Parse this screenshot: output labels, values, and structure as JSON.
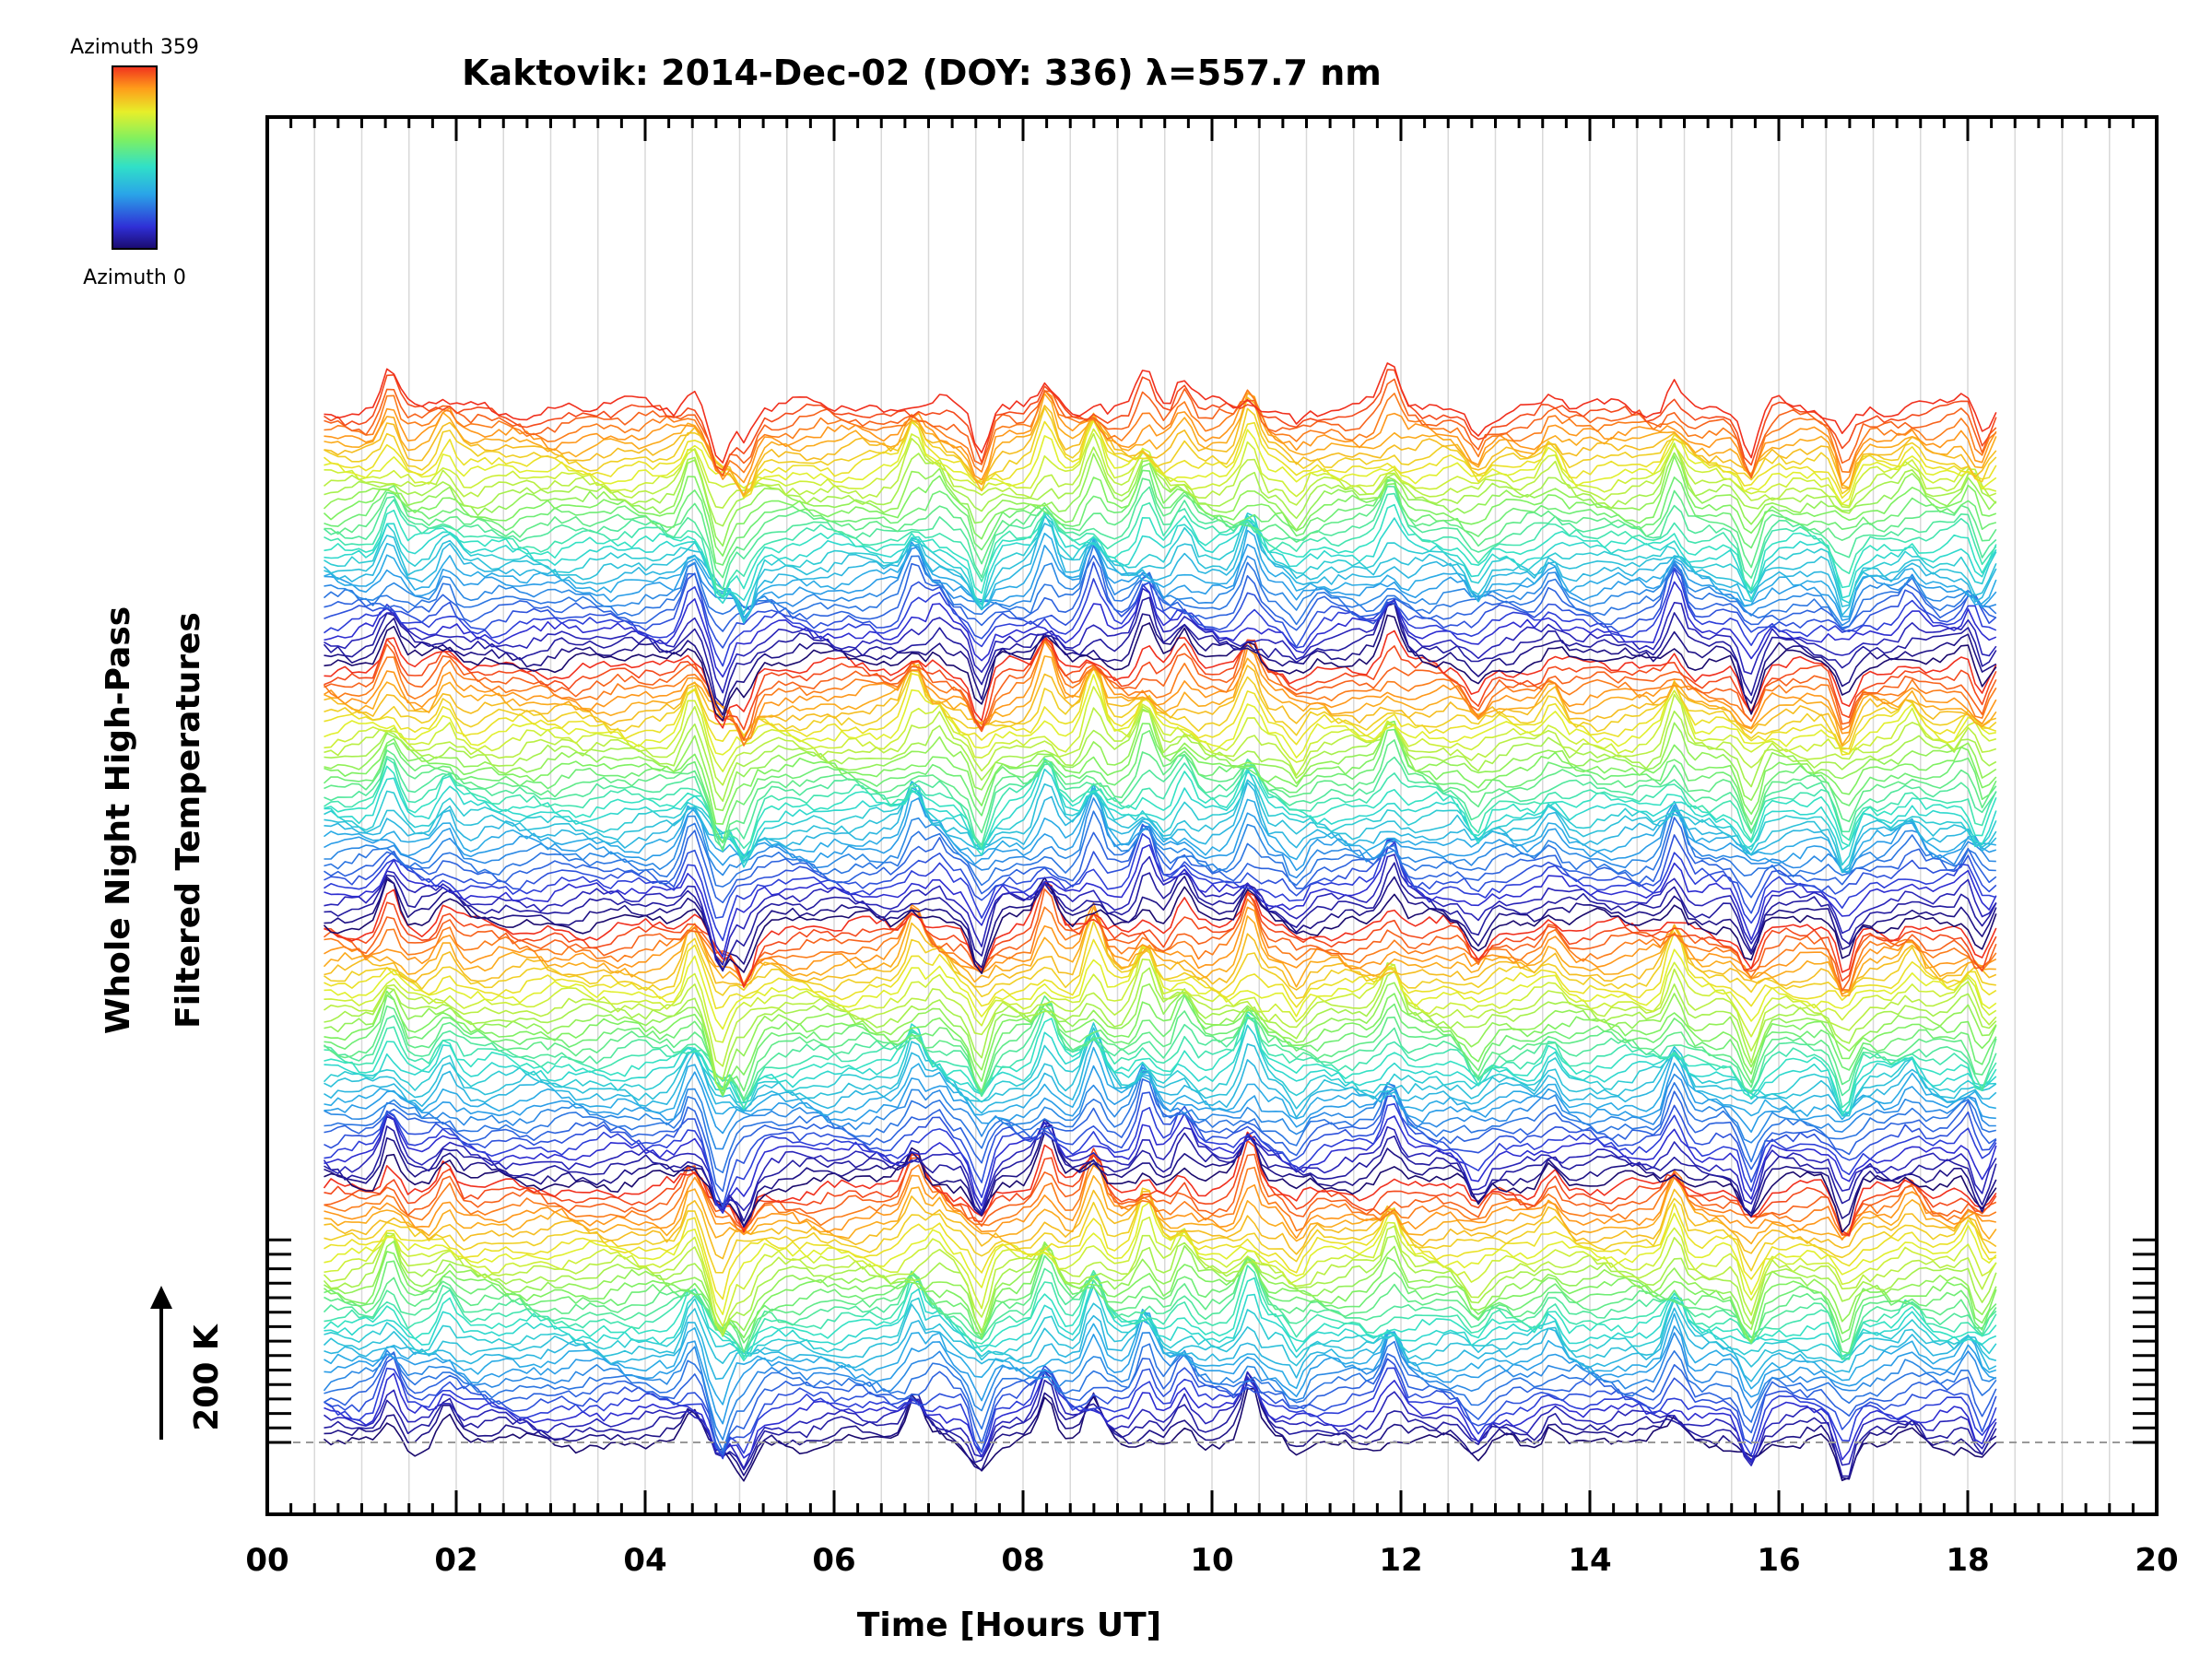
{
  "chart_data": {
    "type": "line",
    "title": "Kaktovik: 2014-Dec-02 (DOY: 336) λ=557.7 nm",
    "xlabel": "Time [Hours UT]",
    "ylabel_line1": "Whole Night High-Pass",
    "ylabel_line2": "Filtered Temperatures",
    "xlim": [
      0,
      20
    ],
    "x_ticks": [
      "00",
      "02",
      "04",
      "06",
      "08",
      "10",
      "12",
      "14",
      "16",
      "18",
      "20"
    ],
    "x_tick_values": [
      0,
      2,
      4,
      6,
      8,
      10,
      12,
      14,
      16,
      18,
      20
    ],
    "data_range_hours": [
      0.6,
      18.3
    ],
    "scale_bar_label": "200 K",
    "scale_bar_kelvin": 200,
    "colorbar": {
      "top_label": "Azimuth 359",
      "bottom_label": "Azimuth 0",
      "min": 0,
      "max": 359
    },
    "n_traces": 144,
    "trace_period": 36,
    "trace_offset_kelvin": 60,
    "grid": true,
    "baseline_dashed": true,
    "event_times_hours": [
      1.3,
      1.9,
      4.5,
      4.8,
      5.05,
      6.85,
      7.1,
      7.55,
      8.25,
      8.75,
      9.3,
      9.7,
      10.4,
      10.9,
      11.9,
      12.8,
      13.6,
      14.9,
      15.7,
      16.7,
      17.4,
      18.05,
      18.12
    ]
  },
  "colors": {
    "grid": "#d9d9d9",
    "axis": "#000000",
    "baseline": "#999999"
  }
}
